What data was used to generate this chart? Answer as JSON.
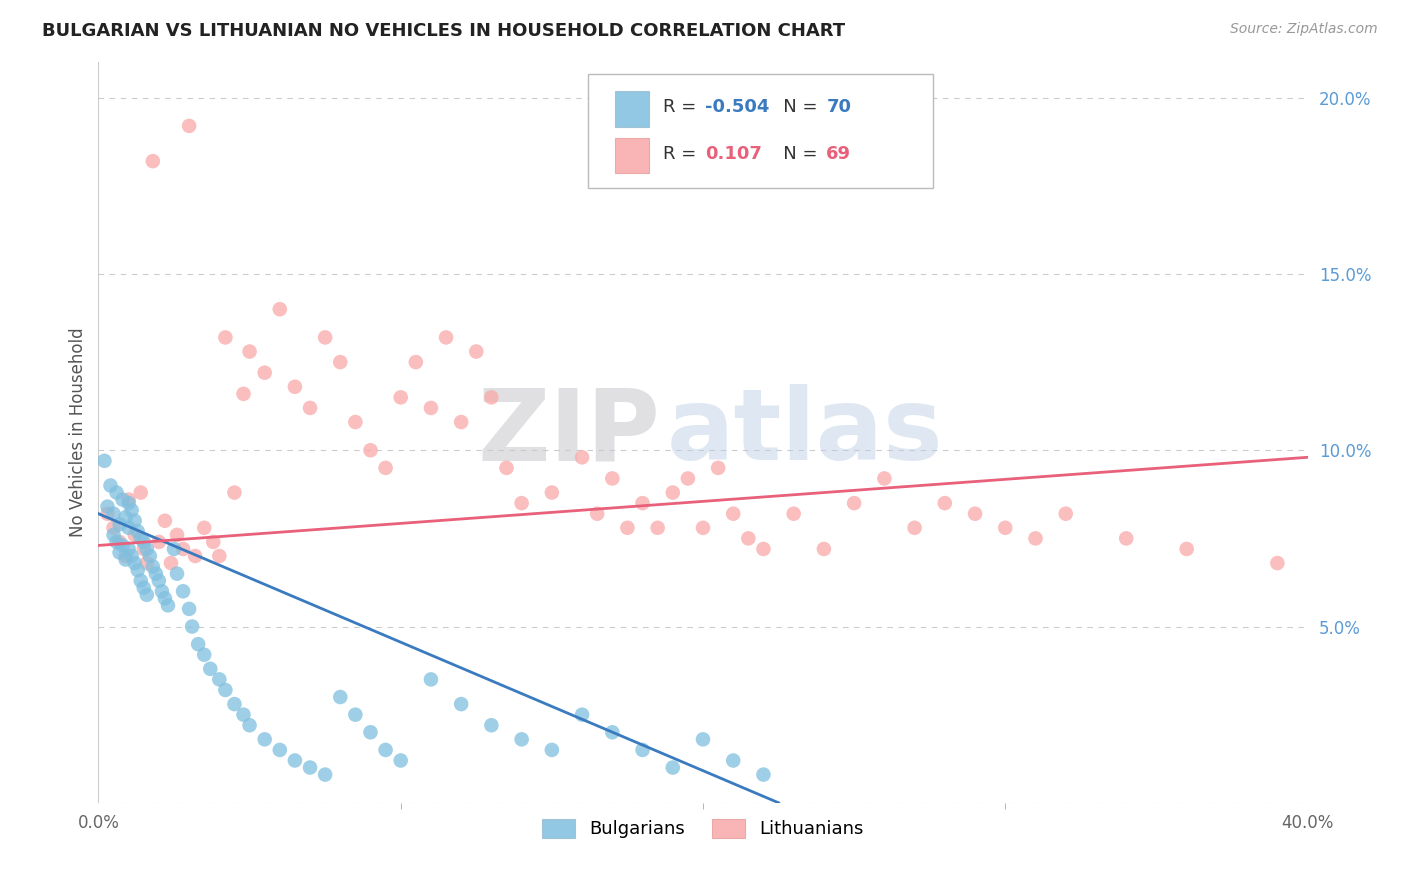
{
  "title": "BULGARIAN VS LITHUANIAN NO VEHICLES IN HOUSEHOLD CORRELATION CHART",
  "source": "Source: ZipAtlas.com",
  "ylabel": "No Vehicles in Household",
  "xlim": [
    0.0,
    0.4
  ],
  "ylim": [
    0.0,
    0.21
  ],
  "yticks": [
    0.05,
    0.1,
    0.15,
    0.2
  ],
  "ytick_labels": [
    "5.0%",
    "10.0%",
    "15.0%",
    "20.0%"
  ],
  "xtick_labels": [
    "0.0%",
    "40.0%"
  ],
  "bg_color": "#ffffff",
  "grid_color": "#cccccc",
  "legend_r_bulgarian": "-0.504",
  "legend_n_bulgarian": "70",
  "legend_r_lithuanian": "0.107",
  "legend_n_lithuanian": "69",
  "bulgarian_color": "#7fbfdf",
  "lithuanian_color": "#f9a8a8",
  "bulgarian_line_color": "#3a7abf",
  "lithuanian_line_color": "#e8607a",
  "watermark_zip": "ZIP",
  "watermark_atlas": "atlas",
  "title_fontsize": 13,
  "source_fontsize": 10,
  "tick_fontsize": 12,
  "ylabel_fontsize": 12,
  "bulg_line_x0": 0.0,
  "bulg_line_x1": 0.225,
  "bulg_line_y0": 0.082,
  "bulg_line_y1": 0.0,
  "lith_line_x0": 0.0,
  "lith_line_x1": 0.4,
  "lith_line_y0": 0.073,
  "lith_line_y1": 0.098
}
